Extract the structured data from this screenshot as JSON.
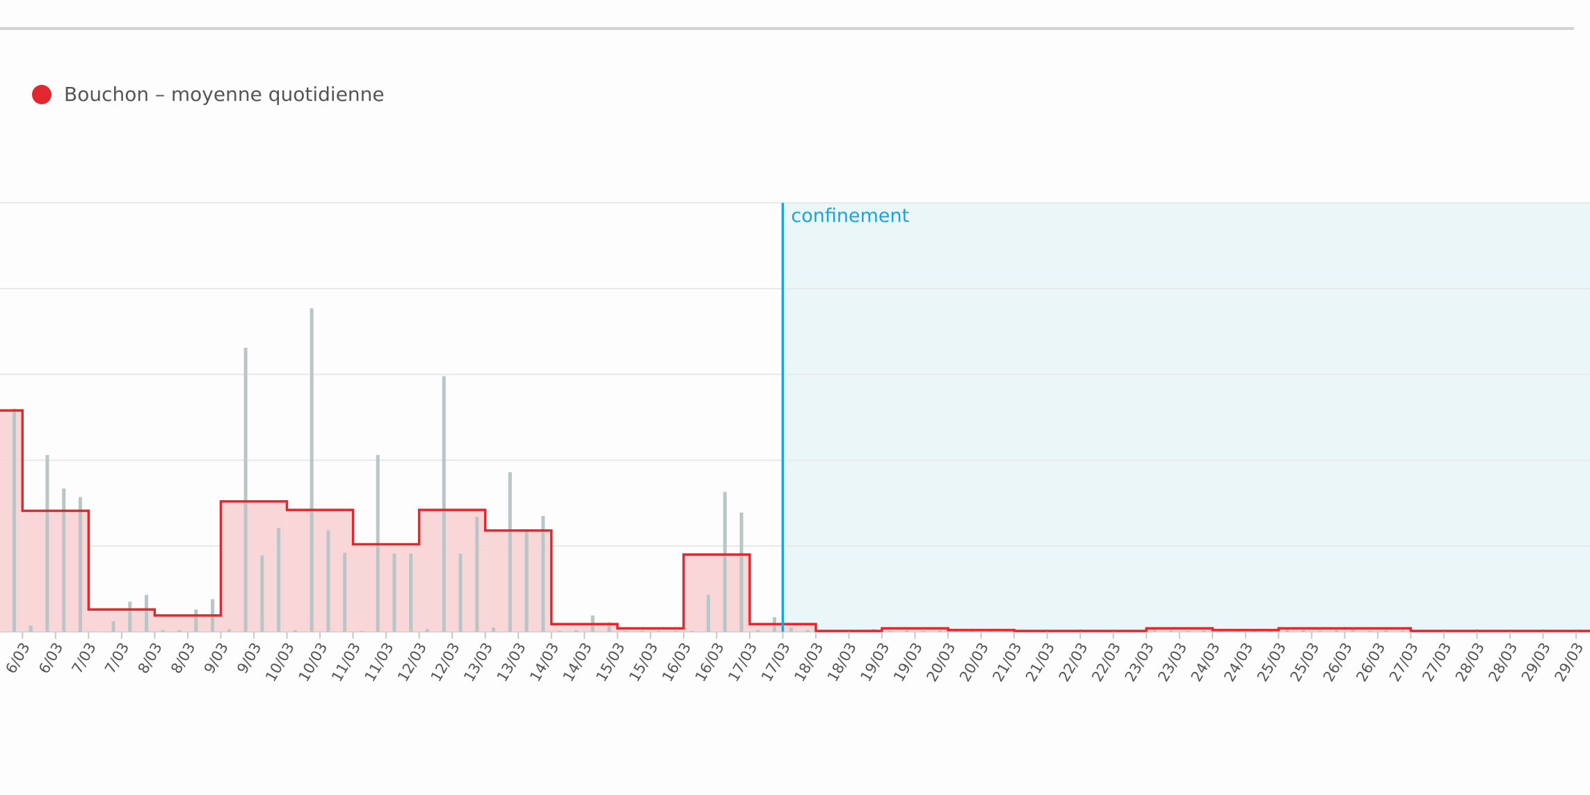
{
  "chart_data": {
    "type": "bar-step",
    "xlim": [
      5.66,
      29.71
    ],
    "ylim": [
      0,
      5
    ],
    "yticks": [
      0,
      1,
      2,
      3,
      4,
      5
    ],
    "grid": true,
    "xticks": [
      {
        "value": 6,
        "label": "6/03"
      },
      {
        "value": 6.5,
        "label": "6/03"
      },
      {
        "value": 7,
        "label": "7/03"
      },
      {
        "value": 7.5,
        "label": "7/03"
      },
      {
        "value": 8,
        "label": "8/03"
      },
      {
        "value": 8.5,
        "label": "8/03"
      },
      {
        "value": 9,
        "label": "9/03"
      },
      {
        "value": 9.5,
        "label": "9/03"
      },
      {
        "value": 10,
        "label": "10/03"
      },
      {
        "value": 10.5,
        "label": "10/03"
      },
      {
        "value": 11,
        "label": "11/03"
      },
      {
        "value": 11.5,
        "label": "11/03"
      },
      {
        "value": 12,
        "label": "12/03"
      },
      {
        "value": 12.5,
        "label": "12/03"
      },
      {
        "value": 13,
        "label": "13/03"
      },
      {
        "value": 13.5,
        "label": "13/03"
      },
      {
        "value": 14,
        "label": "14/03"
      },
      {
        "value": 14.5,
        "label": "14/03"
      },
      {
        "value": 15,
        "label": "15/03"
      },
      {
        "value": 15.5,
        "label": "15/03"
      },
      {
        "value": 16,
        "label": "16/03"
      },
      {
        "value": 16.5,
        "label": "16/03"
      },
      {
        "value": 17,
        "label": "17/03"
      },
      {
        "value": 17.5,
        "label": "17/03"
      },
      {
        "value": 18,
        "label": "18/03"
      },
      {
        "value": 18.5,
        "label": "18/03"
      },
      {
        "value": 19,
        "label": "19/03"
      },
      {
        "value": 19.5,
        "label": "19/03"
      },
      {
        "value": 20,
        "label": "20/03"
      },
      {
        "value": 20.5,
        "label": "20/03"
      },
      {
        "value": 21,
        "label": "21/03"
      },
      {
        "value": 21.5,
        "label": "21/03"
      },
      {
        "value": 22,
        "label": "22/03"
      },
      {
        "value": 22.5,
        "label": "22/03"
      },
      {
        "value": 23,
        "label": "23/03"
      },
      {
        "value": 23.5,
        "label": "23/03"
      },
      {
        "value": 24,
        "label": "24/03"
      },
      {
        "value": 24.5,
        "label": "24/03"
      },
      {
        "value": 25,
        "label": "25/03"
      },
      {
        "value": 25.5,
        "label": "25/03"
      },
      {
        "value": 26,
        "label": "26/03"
      },
      {
        "value": 26.5,
        "label": "26/03"
      },
      {
        "value": 27,
        "label": "27/03"
      },
      {
        "value": 27.5,
        "label": "27/03"
      },
      {
        "value": 28,
        "label": "28/03"
      },
      {
        "value": 28.5,
        "label": "28/03"
      },
      {
        "value": 29,
        "label": "29/03"
      },
      {
        "value": 29.5,
        "label": "29/03"
      }
    ],
    "series": [
      {
        "type": "bar",
        "color": "#b9c5c6",
        "x": [
          5.875,
          6.125,
          6.375,
          6.625,
          6.875,
          7.125,
          7.375,
          7.625,
          7.875,
          8.125,
          8.375,
          8.625,
          8.875,
          9.125,
          9.375,
          9.625,
          9.875,
          10.125,
          10.375,
          10.625,
          10.875,
          11.125,
          11.375,
          11.625,
          11.875,
          12.125,
          12.375,
          12.625,
          12.875,
          13.125,
          13.375,
          13.625,
          13.875,
          14.125,
          14.375,
          14.625,
          14.875,
          15.125,
          15.375,
          15.625,
          15.875,
          16.125,
          16.375,
          16.625,
          16.875,
          17.125,
          17.375,
          17.625,
          17.875,
          18.125,
          18.375,
          18.625,
          18.875,
          19.125,
          19.375,
          19.625,
          19.875,
          20.125,
          20.375,
          20.625,
          20.875,
          21.125,
          21.375,
          21.625,
          21.875,
          22.125,
          22.375,
          22.625,
          22.875,
          23.125,
          23.375,
          23.625,
          23.875,
          24.125,
          24.375,
          24.625,
          24.875,
          25.125,
          25.375,
          25.625,
          25.875,
          26.125,
          26.375,
          26.625,
          26.875,
          27.125,
          27.375,
          27.625,
          27.875,
          28.125,
          28.375,
          28.625,
          28.875,
          29.125,
          29.375,
          29.625
        ],
        "values": [
          2.6,
          0.07,
          2.06,
          1.67,
          1.57,
          0,
          0.12,
          0.35,
          0.43,
          0.02,
          0.02,
          0.26,
          0.38,
          0.03,
          3.31,
          0.89,
          1.21,
          0.02,
          3.77,
          1.18,
          0.92,
          0.01,
          2.06,
          0.91,
          0.91,
          0.03,
          2.98,
          0.91,
          1.34,
          0.05,
          1.86,
          1.18,
          1.35,
          0.01,
          0.02,
          0.19,
          0.11,
          0.01,
          0.01,
          0.01,
          0.01,
          0.01,
          0.43,
          1.63,
          1.39,
          0.02,
          0.17,
          0.05,
          0.02,
          0.01,
          0.02,
          0.01,
          0.03,
          0.01,
          0.02,
          0.01,
          0.02,
          0.01,
          0.01,
          0.01,
          0.01,
          0.02,
          0.01,
          0.01,
          0.01,
          0.01,
          0.01,
          0.02,
          0.01,
          0.03,
          0.02,
          0.01,
          0.02,
          0.01,
          0.01,
          0.02,
          0.01,
          0.03,
          0.02,
          0.01,
          0.02,
          0.03,
          0.01,
          0.02,
          0.01,
          0.01,
          0.01,
          0.01,
          0.01,
          0.02,
          0.01,
          0.01,
          0.01,
          0.01,
          0.01,
          0.01
        ]
      },
      {
        "type": "step",
        "name": "Bouchon – moyenne quotidienne",
        "color": "#e0282e",
        "fill": "#f8d3d4",
        "x": [
          5,
          6,
          7,
          8,
          9,
          10,
          11,
          12,
          13,
          14,
          15,
          16,
          17,
          18,
          19,
          20,
          21,
          22,
          23,
          24,
          25,
          26,
          27,
          28,
          29
        ],
        "values": [
          2.58,
          1.41,
          0.26,
          0.19,
          1.52,
          1.42,
          1.02,
          1.42,
          1.18,
          0.09,
          0.04,
          0.9,
          0.09,
          0.01,
          0.04,
          0.02,
          0.01,
          0.01,
          0.04,
          0.02,
          0.04,
          0.04,
          0.01,
          0.01,
          0.01
        ]
      }
    ],
    "annotations": [
      {
        "x": 17.5,
        "text": "confinement",
        "color": "#1aa3dc",
        "shade_color": "#ebf6f9"
      }
    ]
  }
}
